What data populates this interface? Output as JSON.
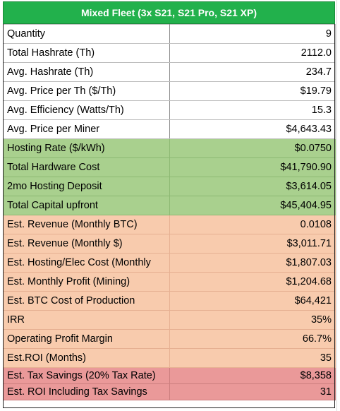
{
  "title": "Mixed Fleet (3x S21, S21 Pro, S21 XP)",
  "rows": [
    {
      "label": "Quantity",
      "value": "9",
      "group": "white"
    },
    {
      "label": "Total Hashrate (Th)",
      "value": "2112.0",
      "group": "white"
    },
    {
      "label": "Avg. Hashrate (Th)",
      "value": "234.7",
      "group": "white"
    },
    {
      "label": "Avg. Price per Th ($/Th)",
      "value": "$19.79",
      "group": "white"
    },
    {
      "label": "Avg. Efficiency (Watts/Th)",
      "value": "15.3",
      "group": "white"
    },
    {
      "label": "Avg. Price per Miner",
      "value": "$4,643.43",
      "group": "white"
    },
    {
      "label": "Hosting Rate ($/kWh)",
      "value": "$0.0750",
      "group": "green"
    },
    {
      "label": "Total Hardware Cost",
      "value": "$41,790.90",
      "group": "green"
    },
    {
      "label": "2mo Hosting Deposit",
      "value": "$3,614.05",
      "group": "green"
    },
    {
      "label": "Total Capital upfront",
      "value": "$45,404.95",
      "group": "green"
    },
    {
      "label": "Est. Revenue (Monthly BTC)",
      "value": "0.0108",
      "group": "orange"
    },
    {
      "label": "Est. Revenue (Monthly $)",
      "value": "$3,011.71",
      "group": "orange"
    },
    {
      "label": "Est. Hosting/Elec Cost (Monthly",
      "value": "$1,807.03",
      "group": "orange"
    },
    {
      "label": "Est. Monthly Profit (Mining)",
      "value": "$1,204.68",
      "group": "orange"
    },
    {
      "label": "Est. BTC Cost of Production",
      "value": "$64,421",
      "group": "orange"
    },
    {
      "label": "IRR",
      "value": "35%",
      "group": "orange"
    },
    {
      "label": "Operating Profit Margin",
      "value": "66.7%",
      "group": "orange"
    },
    {
      "label": "Est.ROI (Months)",
      "value": "35",
      "group": "orange"
    },
    {
      "label": "Est. Tax Savings (20% Tax Rate)",
      "value": "$8,358",
      "group": "red"
    },
    {
      "label": "Est. ROI Including Tax Savings",
      "value": "31",
      "group": "red"
    }
  ]
}
